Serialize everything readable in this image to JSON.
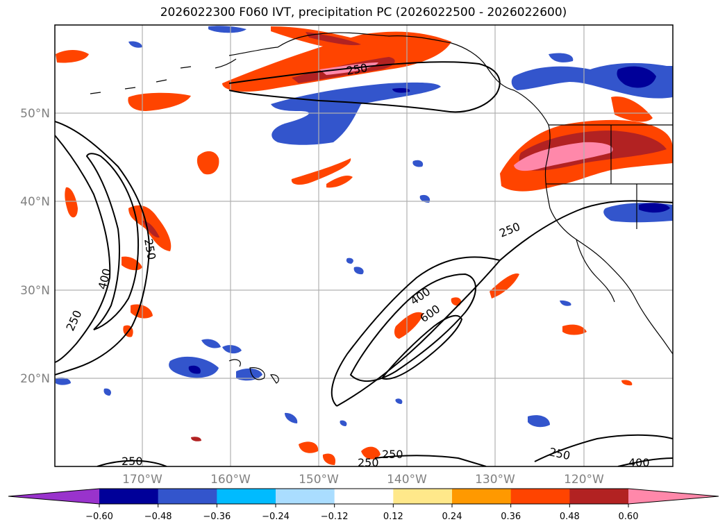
{
  "title": "2026022300 F060 IVT, precipitation PC (2026022500 - 2026022600)",
  "lat_labels": [
    "50°N",
    "40°N",
    "30°N",
    "20°N"
  ],
  "lon_labels": [
    "170°W",
    "160°W",
    "150°W",
    "140°W",
    "130°W",
    "120°W"
  ],
  "ivt_contour_labels": [
    "250",
    "250",
    "250",
    "400",
    "250",
    "250",
    "400",
    "600",
    "250",
    "250",
    "250",
    "400"
  ],
  "colorbar": {
    "colors": [
      "#9933cc",
      "#000099",
      "#3355cc",
      "#00bbff",
      "#aaddff",
      "#ffffff",
      "#ffe88a",
      "#ff9900",
      "#ff4400",
      "#b22222",
      "#ff88aa"
    ],
    "tick_labels": [
      "−0.60",
      "−0.48",
      "−0.36",
      "−0.24",
      "−0.12",
      "0.12",
      "0.24",
      "0.36",
      "0.48",
      "0.60"
    ]
  }
}
